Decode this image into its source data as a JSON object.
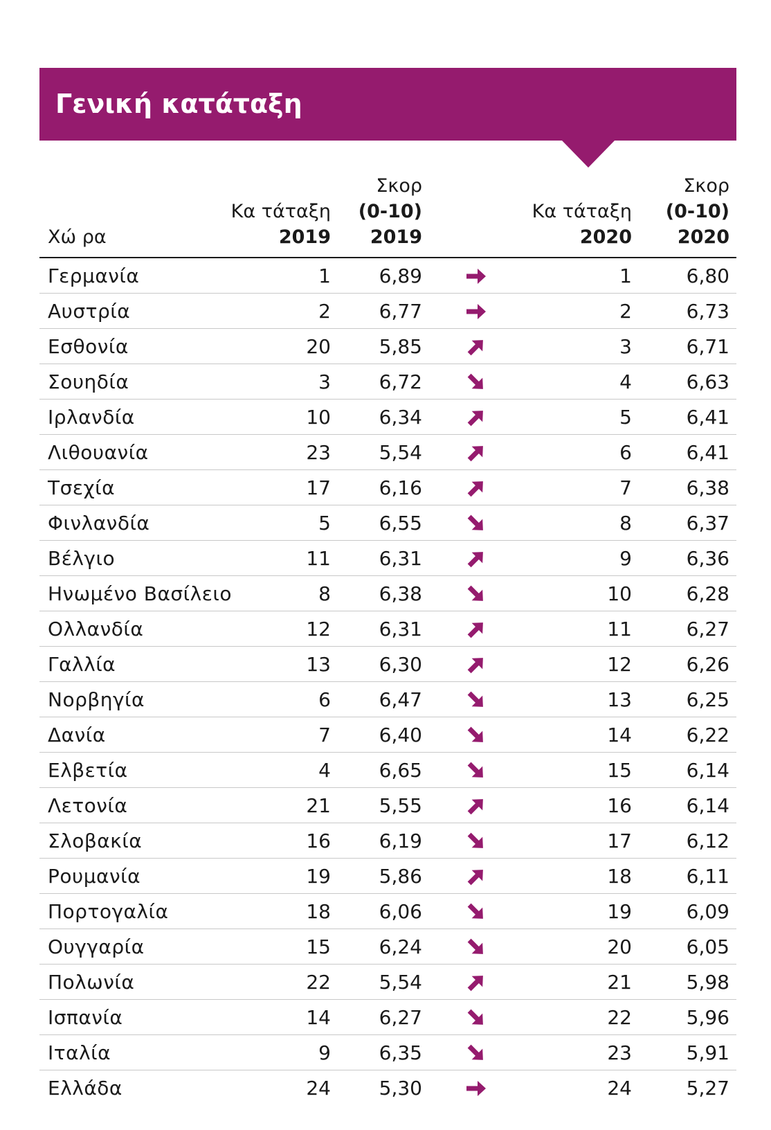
{
  "header": {
    "title": "Γενική κατάταξη"
  },
  "columns": {
    "country": "Χώ ρα",
    "rank_2019": [
      "Κα τάταξη",
      "2019"
    ],
    "score_2019": [
      "Σκορ",
      "(0-10)",
      "2019"
    ],
    "rank_2020": [
      "Κα τάταξη",
      "2020"
    ],
    "score_2020": [
      "Σκορ",
      "(0-10)",
      "2020"
    ]
  },
  "colors": {
    "accent": "#951b6e"
  },
  "rows": [
    {
      "country": "Γερμανία",
      "rank_2019": "1",
      "score_2019": "6,89",
      "trend": "right-arrow-icon",
      "rank_2020": "1",
      "score_2020": "6,80"
    },
    {
      "country": "Αυστρία",
      "rank_2019": "2",
      "score_2019": "6,77",
      "trend": "right-arrow-icon",
      "rank_2020": "2",
      "score_2020": "6,73"
    },
    {
      "country": "Εσθονία",
      "rank_2019": "20",
      "score_2019": "5,85",
      "trend": "up-right-arrow-icon",
      "rank_2020": "3",
      "score_2020": "6,71"
    },
    {
      "country": "Σουηδία",
      "rank_2019": "3",
      "score_2019": "6,72",
      "trend": "down-right-arrow-icon",
      "rank_2020": "4",
      "score_2020": "6,63"
    },
    {
      "country": "Ιρλανδία",
      "rank_2019": "10",
      "score_2019": "6,34",
      "trend": "up-right-arrow-icon",
      "rank_2020": "5",
      "score_2020": "6,41"
    },
    {
      "country": "Λιθουανία",
      "rank_2019": "23",
      "score_2019": "5,54",
      "trend": "up-right-arrow-icon",
      "rank_2020": "6",
      "score_2020": "6,41"
    },
    {
      "country": "Τσεχία",
      "rank_2019": "17",
      "score_2019": "6,16",
      "trend": "up-right-arrow-icon",
      "rank_2020": "7",
      "score_2020": "6,38"
    },
    {
      "country": "Φινλανδία",
      "rank_2019": "5",
      "score_2019": "6,55",
      "trend": "down-right-arrow-icon",
      "rank_2020": "8",
      "score_2020": "6,37"
    },
    {
      "country": "Βέλγιο",
      "rank_2019": "11",
      "score_2019": "6,31",
      "trend": "up-right-arrow-icon",
      "rank_2020": "9",
      "score_2020": "6,36"
    },
    {
      "country": "Ηνωμένο Βασίλειο",
      "rank_2019": "8",
      "score_2019": "6,38",
      "trend": "down-right-arrow-icon",
      "rank_2020": "10",
      "score_2020": "6,28"
    },
    {
      "country": "Ολλανδία",
      "rank_2019": "12",
      "score_2019": "6,31",
      "trend": "up-right-arrow-icon",
      "rank_2020": "11",
      "score_2020": "6,27"
    },
    {
      "country": "Γαλλία",
      "rank_2019": "13",
      "score_2019": "6,30",
      "trend": "up-right-arrow-icon",
      "rank_2020": "12",
      "score_2020": "6,26"
    },
    {
      "country": "Νορβηγία",
      "rank_2019": "6",
      "score_2019": "6,47",
      "trend": "down-right-arrow-icon",
      "rank_2020": "13",
      "score_2020": "6,25"
    },
    {
      "country": "Δανία",
      "rank_2019": "7",
      "score_2019": "6,40",
      "trend": "down-right-arrow-icon",
      "rank_2020": "14",
      "score_2020": "6,22"
    },
    {
      "country": "Ελβετία",
      "rank_2019": "4",
      "score_2019": "6,65",
      "trend": "down-right-arrow-icon",
      "rank_2020": "15",
      "score_2020": "6,14"
    },
    {
      "country": "Λετονία",
      "rank_2019": "21",
      "score_2019": "5,55",
      "trend": "up-right-arrow-icon",
      "rank_2020": "16",
      "score_2020": "6,14"
    },
    {
      "country": "Σλοβακία",
      "rank_2019": "16",
      "score_2019": "6,19",
      "trend": "down-right-arrow-icon",
      "rank_2020": "17",
      "score_2020": "6,12"
    },
    {
      "country": "Ρουμανία",
      "rank_2019": "19",
      "score_2019": "5,86",
      "trend": "up-right-arrow-icon",
      "rank_2020": "18",
      "score_2020": "6,11"
    },
    {
      "country": "Πορτογαλία",
      "rank_2019": "18",
      "score_2019": "6,06",
      "trend": "down-right-arrow-icon",
      "rank_2020": "19",
      "score_2020": "6,09"
    },
    {
      "country": "Ουγγαρία",
      "rank_2019": "15",
      "score_2019": "6,24",
      "trend": "down-right-arrow-icon",
      "rank_2020": "20",
      "score_2020": "6,05"
    },
    {
      "country": "Πολωνία",
      "rank_2019": "22",
      "score_2019": "5,54",
      "trend": "up-right-arrow-icon",
      "rank_2020": "21",
      "score_2020": "5,98"
    },
    {
      "country": "Ισπανία",
      "rank_2019": "14",
      "score_2019": "6,27",
      "trend": "down-right-arrow-icon",
      "rank_2020": "22",
      "score_2020": "5,96"
    },
    {
      "country": "Ιταλία",
      "rank_2019": "9",
      "score_2019": "6,35",
      "trend": "down-right-arrow-icon",
      "rank_2020": "23",
      "score_2020": "5,91"
    },
    {
      "country": "Ελλάδα",
      "rank_2019": "24",
      "score_2019": "5,30",
      "trend": "right-arrow-icon",
      "rank_2020": "24",
      "score_2020": "5,27"
    }
  ]
}
